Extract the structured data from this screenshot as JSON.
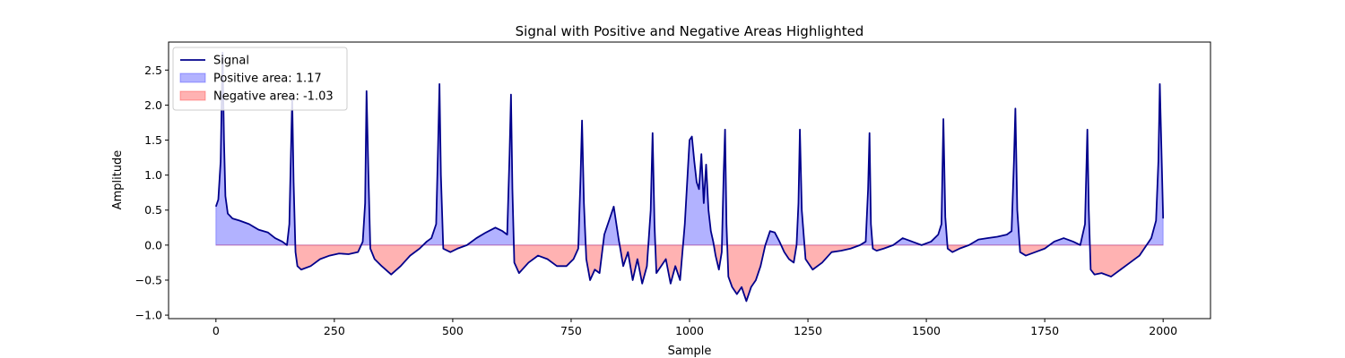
{
  "chart_data": {
    "type": "area",
    "title": "Signal with Positive and Negative Areas Highlighted",
    "xlabel": "Sample",
    "ylabel": "Amplitude",
    "xlim": [
      -100,
      2100
    ],
    "ylim": [
      -1.05,
      2.9
    ],
    "xticks": [
      0,
      250,
      500,
      750,
      1000,
      1250,
      1500,
      1750,
      2000
    ],
    "xtick_labels": [
      "0",
      "250",
      "500",
      "750",
      "1000",
      "1250",
      "1500",
      "1750",
      "2000"
    ],
    "yticks": [
      -1.0,
      -0.5,
      0.0,
      0.5,
      1.0,
      1.5,
      2.0,
      2.5
    ],
    "ytick_labels": [
      "−1.0",
      "−0.5",
      "0.0",
      "0.5",
      "1.0",
      "1.5",
      "2.0",
      "2.5"
    ],
    "grid": false,
    "legend_position": "top-left",
    "legend": [
      {
        "label": "Signal",
        "kind": "line",
        "color": "#00008b"
      },
      {
        "label": "Positive area: 1.17",
        "kind": "patch",
        "color": "#0000ff"
      },
      {
        "label": "Negative area: -1.03",
        "kind": "patch",
        "color": "#ff0000"
      }
    ],
    "series": [
      {
        "name": "Signal",
        "color": "#00008b",
        "x": [
          0,
          5,
          10,
          14,
          17,
          20,
          25,
          35,
          50,
          70,
          90,
          110,
          125,
          140,
          150,
          155,
          158,
          161,
          164,
          168,
          172,
          180,
          200,
          220,
          240,
          260,
          280,
          300,
          310,
          315,
          318,
          322,
          326,
          335,
          350,
          370,
          390,
          410,
          430,
          445,
          455,
          465,
          469,
          472,
          475,
          480,
          495,
          510,
          530,
          550,
          570,
          590,
          605,
          615,
          620,
          623,
          626,
          630,
          640,
          660,
          680,
          700,
          720,
          740,
          755,
          765,
          770,
          773,
          777,
          782,
          790,
          800,
          810,
          820,
          830,
          840,
          850,
          860,
          870,
          880,
          890,
          900,
          910,
          918,
          922,
          926,
          930,
          940,
          950,
          960,
          970,
          980,
          990,
          995,
          1000,
          1005,
          1010,
          1015,
          1020,
          1025,
          1030,
          1035,
          1040,
          1045,
          1050,
          1055,
          1062,
          1068,
          1072,
          1075,
          1078,
          1082,
          1090,
          1100,
          1110,
          1120,
          1130,
          1140,
          1150,
          1160,
          1170,
          1180,
          1190,
          1200,
          1210,
          1220,
          1226,
          1230,
          1233,
          1237,
          1245,
          1260,
          1280,
          1300,
          1320,
          1340,
          1360,
          1372,
          1377,
          1380,
          1383,
          1387,
          1395,
          1410,
          1430,
          1450,
          1470,
          1490,
          1510,
          1525,
          1532,
          1536,
          1540,
          1545,
          1555,
          1570,
          1590,
          1610,
          1630,
          1650,
          1670,
          1680,
          1685,
          1688,
          1692,
          1698,
          1710,
          1730,
          1750,
          1770,
          1790,
          1810,
          1825,
          1835,
          1840,
          1843,
          1847,
          1855,
          1870,
          1890,
          1910,
          1930,
          1950,
          1965,
          1975,
          1985,
          1990,
          1993,
          1997,
          2000
        ],
        "y": [
          0.55,
          0.65,
          1.2,
          2.75,
          1.5,
          0.7,
          0.45,
          0.38,
          0.35,
          0.3,
          0.22,
          0.18,
          0.1,
          0.05,
          0.0,
          0.3,
          1.2,
          2.1,
          0.9,
          -0.1,
          -0.3,
          -0.35,
          -0.3,
          -0.2,
          -0.15,
          -0.12,
          -0.13,
          -0.1,
          0.05,
          0.6,
          2.2,
          1.0,
          -0.05,
          -0.2,
          -0.3,
          -0.42,
          -0.3,
          -0.15,
          -0.05,
          0.05,
          0.1,
          0.3,
          1.4,
          2.3,
          1.0,
          -0.05,
          -0.1,
          -0.05,
          0.0,
          0.1,
          0.18,
          0.25,
          0.2,
          0.15,
          1.3,
          2.15,
          0.8,
          -0.25,
          -0.4,
          -0.25,
          -0.15,
          -0.2,
          -0.3,
          -0.3,
          -0.2,
          -0.05,
          1.0,
          1.78,
          0.6,
          -0.2,
          -0.5,
          -0.35,
          -0.4,
          0.15,
          0.35,
          0.55,
          0.1,
          -0.3,
          -0.1,
          -0.5,
          -0.2,
          -0.55,
          -0.3,
          0.5,
          1.6,
          0.3,
          -0.4,
          -0.3,
          -0.2,
          -0.55,
          -0.3,
          -0.5,
          0.3,
          0.9,
          1.5,
          1.55,
          1.2,
          0.9,
          0.8,
          1.3,
          0.6,
          1.15,
          0.5,
          0.2,
          0.05,
          -0.15,
          -0.35,
          -0.1,
          1.0,
          1.65,
          0.3,
          -0.45,
          -0.6,
          -0.7,
          -0.6,
          -0.8,
          -0.6,
          -0.5,
          -0.3,
          0.0,
          0.2,
          0.18,
          0.05,
          -0.1,
          -0.2,
          -0.25,
          0.0,
          0.6,
          1.65,
          0.5,
          -0.2,
          -0.35,
          -0.25,
          -0.1,
          -0.08,
          -0.05,
          0.0,
          0.05,
          0.8,
          1.6,
          0.3,
          -0.05,
          -0.08,
          -0.05,
          0.0,
          0.1,
          0.05,
          0.0,
          0.05,
          0.15,
          0.3,
          1.8,
          0.4,
          -0.05,
          -0.1,
          -0.05,
          0.0,
          0.08,
          0.1,
          0.12,
          0.15,
          0.2,
          1.2,
          1.95,
          0.5,
          -0.1,
          -0.15,
          -0.1,
          -0.05,
          0.05,
          0.1,
          0.05,
          0.0,
          0.3,
          1.65,
          0.5,
          -0.35,
          -0.42,
          -0.4,
          -0.45,
          -0.35,
          -0.25,
          -0.15,
          0.0,
          0.1,
          0.35,
          1.2,
          2.3,
          1.2,
          0.38
        ]
      }
    ],
    "positive_area": {
      "label": "Positive area: 1.17",
      "color": "#0000ff",
      "opacity": 0.3
    },
    "negative_area": {
      "label": "Negative area: -1.03",
      "color": "#ff0000",
      "opacity": 0.3
    }
  }
}
